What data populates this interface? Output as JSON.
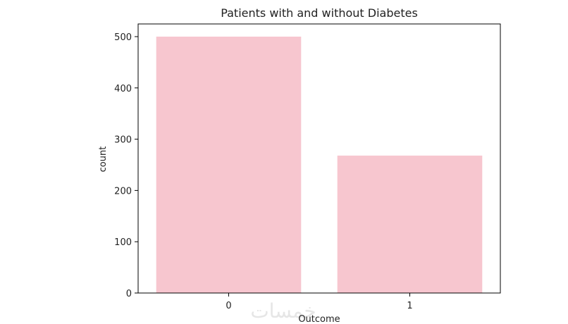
{
  "chart_data": {
    "type": "bar",
    "title": "Patients with and without Diabetes",
    "xlabel": "Outcome",
    "ylabel": "count",
    "categories": [
      "0",
      "1"
    ],
    "values": [
      500,
      268
    ],
    "ylim": [
      0,
      525
    ],
    "yticks": [
      0,
      100,
      200,
      300,
      400,
      500
    ],
    "grid": false,
    "bar_color": "#f7c6cf"
  },
  "watermark": "خمسات"
}
